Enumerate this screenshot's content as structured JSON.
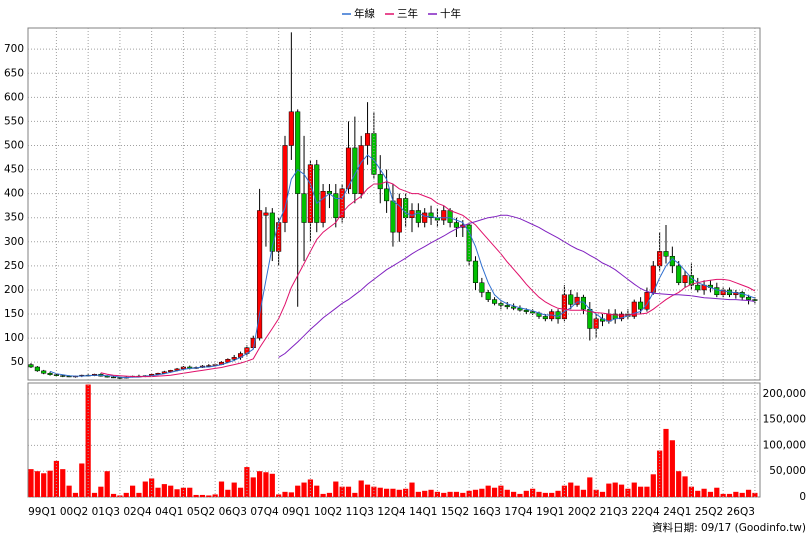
{
  "chart_data": [
    {
      "type": "candlestick",
      "up_color": "#ff0000",
      "down_color": "#00c000",
      "ylim": [
        13,
        744
      ],
      "yticks": [
        50,
        100,
        150,
        200,
        250,
        300,
        350,
        400,
        450,
        500,
        550,
        600,
        650,
        700
      ],
      "grid": true,
      "ohlc": [
        [
          45,
          48,
          38,
          40
        ],
        [
          40,
          42,
          30,
          32
        ],
        [
          32,
          34,
          25,
          27
        ],
        [
          27,
          30,
          22,
          24
        ],
        [
          24,
          26,
          20,
          22
        ],
        [
          22,
          24,
          19,
          21
        ],
        [
          21,
          23,
          19,
          20
        ],
        [
          20,
          22,
          18,
          21
        ],
        [
          21,
          24,
          19,
          23
        ],
        [
          23,
          25,
          20,
          22
        ],
        [
          22,
          26,
          21,
          25
        ],
        [
          25,
          27,
          20,
          21
        ],
        [
          21,
          23,
          18,
          19
        ],
        [
          19,
          21,
          17,
          18
        ],
        [
          18,
          20,
          15,
          17
        ],
        [
          17,
          20,
          16,
          19
        ],
        [
          19,
          22,
          18,
          21
        ],
        [
          21,
          24,
          19,
          20
        ],
        [
          20,
          23,
          19,
          22
        ],
        [
          22,
          26,
          21,
          25
        ],
        [
          25,
          28,
          23,
          27
        ],
        [
          27,
          32,
          26,
          30
        ],
        [
          30,
          34,
          28,
          33
        ],
        [
          33,
          38,
          31,
          36
        ],
        [
          36,
          42,
          34,
          40
        ],
        [
          40,
          43,
          35,
          37
        ],
        [
          37,
          41,
          36,
          39
        ],
        [
          39,
          44,
          38,
          42
        ],
        [
          42,
          46,
          40,
          43
        ],
        [
          43,
          47,
          41,
          45
        ],
        [
          45,
          52,
          44,
          50
        ],
        [
          50,
          58,
          48,
          56
        ],
        [
          56,
          65,
          52,
          60
        ],
        [
          60,
          72,
          55,
          68
        ],
        [
          68,
          85,
          62,
          80
        ],
        [
          80,
          105,
          78,
          100
        ],
        [
          100,
          410,
          95,
          365
        ],
        [
          355,
          372,
          290,
          360
        ],
        [
          360,
          370,
          260,
          280
        ],
        [
          280,
          350,
          250,
          340
        ],
        [
          340,
          520,
          320,
          500
        ],
        [
          500,
          735,
          470,
          570
        ],
        [
          570,
          575,
          165,
          400
        ],
        [
          400,
          520,
          260,
          340
        ],
        [
          340,
          470,
          300,
          460
        ],
        [
          460,
          470,
          320,
          340
        ],
        [
          340,
          420,
          330,
          405
        ],
        [
          405,
          420,
          370,
          400
        ],
        [
          400,
          420,
          330,
          350
        ],
        [
          350,
          420,
          340,
          410
        ],
        [
          410,
          550,
          400,
          495
        ],
        [
          495,
          560,
          380,
          400
        ],
        [
          400,
          520,
          390,
          500
        ],
        [
          500,
          590,
          460,
          525
        ],
        [
          525,
          570,
          430,
          440
        ],
        [
          440,
          480,
          380,
          410
        ],
        [
          410,
          450,
          360,
          385
        ],
        [
          385,
          420,
          290,
          320
        ],
        [
          320,
          400,
          300,
          390
        ],
        [
          390,
          400,
          330,
          350
        ],
        [
          350,
          380,
          320,
          365
        ],
        [
          365,
          380,
          330,
          340
        ],
        [
          340,
          370,
          330,
          360
        ],
        [
          360,
          375,
          335,
          350
        ],
        [
          350,
          370,
          330,
          345
        ],
        [
          345,
          375,
          335,
          365
        ],
        [
          365,
          370,
          330,
          340
        ],
        [
          340,
          350,
          310,
          330
        ],
        [
          330,
          345,
          310,
          335
        ],
        [
          335,
          340,
          250,
          260
        ],
        [
          260,
          270,
          200,
          215
        ],
        [
          215,
          225,
          185,
          195
        ],
        [
          195,
          200,
          175,
          180
        ],
        [
          180,
          185,
          168,
          172
        ],
        [
          172,
          178,
          160,
          168
        ],
        [
          168,
          175,
          160,
          165
        ],
        [
          165,
          172,
          158,
          162
        ],
        [
          162,
          168,
          155,
          158
        ],
        [
          158,
          162,
          150,
          155
        ],
        [
          155,
          160,
          148,
          152
        ],
        [
          152,
          155,
          140,
          145
        ],
        [
          145,
          150,
          135,
          140
        ],
        [
          140,
          160,
          135,
          155
        ],
        [
          155,
          160,
          130,
          140
        ],
        [
          140,
          210,
          135,
          190
        ],
        [
          190,
          200,
          160,
          170
        ],
        [
          170,
          195,
          165,
          185
        ],
        [
          185,
          190,
          150,
          160
        ],
        [
          160,
          175,
          95,
          120
        ],
        [
          120,
          150,
          100,
          140
        ],
        [
          140,
          150,
          125,
          135
        ],
        [
          135,
          160,
          130,
          150
        ],
        [
          150,
          160,
          130,
          140
        ],
        [
          140,
          155,
          135,
          150
        ],
        [
          150,
          160,
          140,
          145
        ],
        [
          145,
          180,
          140,
          175
        ],
        [
          175,
          185,
          150,
          160
        ],
        [
          160,
          205,
          155,
          195
        ],
        [
          195,
          260,
          190,
          250
        ],
        [
          250,
          320,
          240,
          280
        ],
        [
          280,
          335,
          255,
          270
        ],
        [
          270,
          290,
          235,
          250
        ],
        [
          250,
          260,
          210,
          215
        ],
        [
          215,
          240,
          205,
          230
        ],
        [
          230,
          255,
          200,
          210
        ],
        [
          210,
          225,
          195,
          200
        ],
        [
          200,
          220,
          190,
          210
        ],
        [
          210,
          220,
          195,
          205
        ],
        [
          205,
          215,
          185,
          190
        ],
        [
          190,
          205,
          185,
          200
        ],
        [
          200,
          205,
          185,
          190
        ],
        [
          190,
          200,
          182,
          195
        ],
        [
          195,
          198,
          178,
          185
        ],
        [
          185,
          190,
          170,
          180
        ],
        [
          180,
          185,
          172,
          178
        ]
      ],
      "series": [
        {
          "name": "年線",
          "color": "#3070d0",
          "values": [
            null,
            null,
            null,
            31,
            26,
            24,
            22,
            21,
            21,
            22,
            23,
            23,
            22,
            21,
            19,
            18,
            19,
            19,
            21,
            22,
            24,
            26,
            29,
            32,
            35,
            37,
            38,
            40,
            40,
            42,
            45,
            49,
            54,
            60,
            68,
            77,
            150,
            220,
            290,
            340,
            370,
            430,
            450,
            440,
            420,
            380,
            390,
            400,
            390,
            390,
            415,
            440,
            465,
            480,
            470,
            450,
            430,
            385,
            375,
            360,
            355,
            360,
            353,
            352,
            350,
            350,
            350,
            345,
            340,
            320,
            290,
            250,
            215,
            190,
            178,
            171,
            167,
            163,
            160,
            157,
            152,
            148,
            148,
            145,
            155,
            163,
            175,
            175,
            160,
            150,
            140,
            135,
            140,
            142,
            146,
            152,
            155,
            170,
            195,
            225,
            250,
            265,
            255,
            240,
            225,
            215,
            210,
            205,
            200,
            198,
            196,
            194,
            192,
            188,
            183
          ]
        },
        {
          "name": "三年",
          "color": "#e0106a",
          "values": [
            null,
            null,
            null,
            null,
            null,
            null,
            null,
            null,
            null,
            null,
            null,
            28,
            25,
            23,
            22,
            21,
            20,
            20,
            20,
            20,
            21,
            22,
            23,
            25,
            27,
            29,
            31,
            33,
            35,
            37,
            39,
            42,
            45,
            48,
            52,
            57,
            80,
            100,
            120,
            140,
            170,
            205,
            230,
            255,
            280,
            305,
            320,
            330,
            340,
            360,
            375,
            385,
            395,
            410,
            420,
            420,
            425,
            420,
            410,
            405,
            400,
            400,
            395,
            390,
            380,
            375,
            365,
            360,
            355,
            345,
            335,
            320,
            305,
            290,
            275,
            258,
            243,
            228,
            212,
            198,
            185,
            175,
            168,
            162,
            160,
            158,
            158,
            158,
            155,
            153,
            152,
            150,
            148,
            148,
            148,
            150,
            150,
            152,
            160,
            170,
            180,
            188,
            195,
            205,
            212,
            215,
            218,
            220,
            222,
            222,
            220,
            215,
            210,
            205,
            198
          ]
        },
        {
          "name": "十年",
          "color": "#8020c0",
          "values": [
            null,
            null,
            null,
            null,
            null,
            null,
            null,
            null,
            null,
            null,
            null,
            null,
            null,
            null,
            null,
            null,
            null,
            null,
            null,
            null,
            null,
            null,
            null,
            null,
            null,
            null,
            null,
            null,
            null,
            null,
            null,
            null,
            null,
            null,
            null,
            null,
            null,
            null,
            null,
            60,
            68,
            80,
            92,
            105,
            118,
            130,
            142,
            152,
            162,
            172,
            180,
            190,
            200,
            212,
            222,
            232,
            242,
            250,
            258,
            266,
            275,
            283,
            290,
            298,
            305,
            312,
            320,
            327,
            333,
            338,
            342,
            346,
            350,
            352,
            355,
            355,
            352,
            348,
            342,
            336,
            330,
            322,
            315,
            308,
            300,
            292,
            285,
            280,
            272,
            265,
            256,
            250,
            242,
            232,
            222,
            212,
            203,
            197,
            193,
            192,
            191,
            190,
            190,
            189,
            188,
            186,
            184,
            183,
            182,
            181,
            180,
            180,
            179,
            178,
            176
          ]
        }
      ]
    },
    {
      "type": "bar",
      "color": "#ff0000",
      "ylim": [
        0,
        221000
      ],
      "yticks": [
        0,
        {
          "value": 50000,
          "label": "50,000"
        },
        {
          "value": 100000,
          "label": "100,000"
        },
        {
          "value": 150000,
          "label": "150,000"
        },
        {
          "value": 200000,
          "label": "200,000"
        }
      ],
      "categories": [
        null,
        null,
        null,
        null,
        "99Q1",
        null,
        null,
        null,
        null,
        "00Q2",
        null,
        null,
        null,
        null,
        "01Q3",
        null,
        null,
        null,
        null,
        "02Q4",
        null,
        null,
        null,
        null,
        "04Q1",
        null,
        null,
        null,
        null,
        "05Q2",
        null,
        null,
        null,
        null,
        "06Q3",
        null,
        null,
        null,
        null,
        "07Q4",
        null,
        null,
        null,
        null,
        "09Q1",
        null,
        null,
        null,
        null,
        "10Q2",
        null,
        null,
        null,
        null,
        "11Q3",
        null,
        null,
        null,
        null,
        "12Q4",
        null,
        null,
        null,
        null,
        "14Q1",
        null,
        null,
        null,
        null,
        "15Q2",
        null,
        null,
        null,
        null,
        "16Q3",
        null,
        null,
        null,
        null,
        "17Q4",
        null,
        null,
        null,
        null,
        "19Q1",
        null,
        null,
        null,
        null,
        "20Q2",
        null,
        null,
        null,
        null,
        "21Q3",
        null,
        null,
        null,
        null,
        "22Q4",
        null,
        null,
        null,
        null,
        "24Q1",
        null,
        null,
        null,
        null,
        "25Q2",
        null,
        null,
        null,
        null,
        "26Q3"
      ],
      "values": [
        54000,
        50000,
        46000,
        51000,
        70000,
        54000,
        22000,
        8000,
        65000,
        218000,
        8000,
        20000,
        50000,
        6000,
        3000,
        8000,
        22000,
        8000,
        30000,
        36000,
        18000,
        25000,
        22000,
        15000,
        18000,
        18000,
        4000,
        4000,
        3000,
        5000,
        30000,
        14000,
        28000,
        18000,
        58000,
        38000,
        50000,
        48000,
        45000,
        5000,
        10000,
        9000,
        22000,
        28000,
        34000,
        22000,
        6000,
        8000,
        30000,
        20000,
        20000,
        8000,
        32000,
        24000,
        20000,
        18000,
        16000,
        16000,
        14000,
        16000,
        28000,
        10000,
        12000,
        14000,
        10000,
        8000,
        10000,
        10000,
        8000,
        12000,
        14000,
        16000,
        22000,
        18000,
        22000,
        14000,
        10000,
        6000,
        12000,
        16000,
        10000,
        8000,
        8000,
        12000,
        22000,
        28000,
        22000,
        14000,
        38000,
        14000,
        10000,
        26000,
        28000,
        24000,
        16000,
        28000,
        20000,
        20000,
        44000,
        90000,
        132000,
        110000,
        50000,
        40000,
        20000,
        12000,
        16000,
        10000,
        18000,
        6000,
        6000,
        10000,
        8000,
        14000,
        8000
      ]
    }
  ],
  "footer": "資料日期: 09/17 (Goodinfo.tw)"
}
